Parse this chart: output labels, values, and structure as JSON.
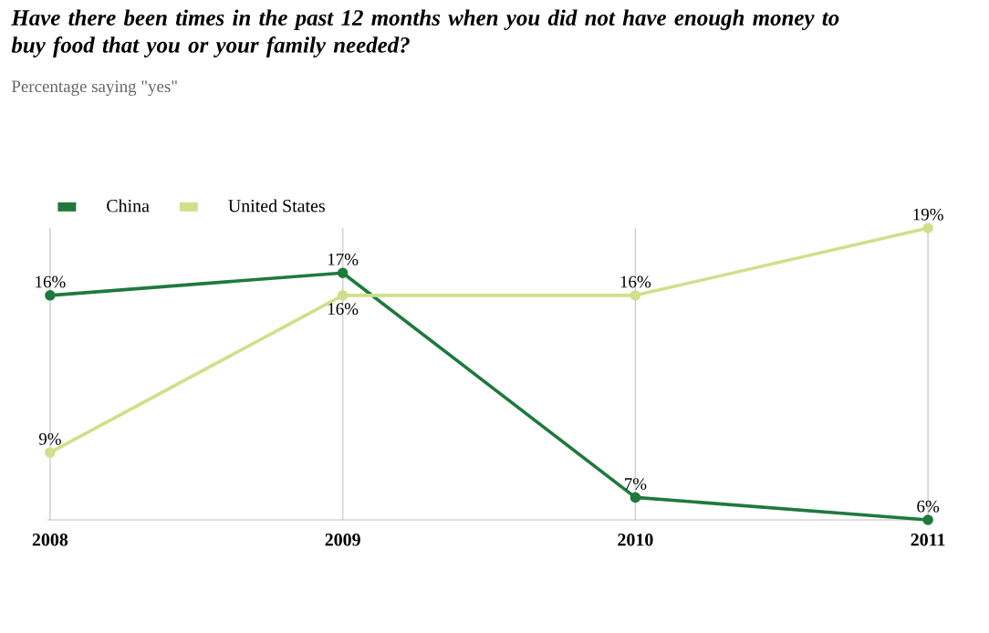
{
  "chart_data": {
    "type": "line",
    "title": "Have there been times in the past 12 months when you did not have enough money to buy food that you or your family needed?",
    "subtitle": "Percentage saying \"yes\"",
    "categories": [
      "2008",
      "2009",
      "2010",
      "2011"
    ],
    "series": [
      {
        "name": "China",
        "color": "#1e7a3c",
        "values": [
          16,
          17,
          7,
          6
        ],
        "value_labels": [
          "16%",
          "17%",
          "7%",
          "6%"
        ]
      },
      {
        "name": "United States",
        "color": "#cfe08a",
        "values": [
          9,
          16,
          16,
          19
        ],
        "value_labels": [
          "9%",
          "16%",
          "16%",
          "19%"
        ]
      }
    ],
    "marker": "circle",
    "grid": "x",
    "legend": "top left"
  }
}
